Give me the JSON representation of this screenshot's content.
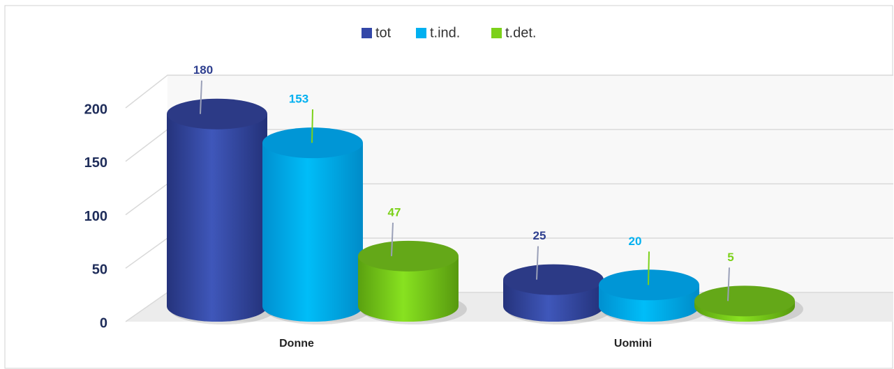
{
  "chart_data": {
    "type": "bar3d",
    "categories": [
      "Donne",
      "Uomini"
    ],
    "series": [
      {
        "name": "tot",
        "color": "#3347a8",
        "values": [
          180,
          25
        ]
      },
      {
        "name": "t.ind.",
        "color": "#00b0f0",
        "values": [
          153,
          20
        ]
      },
      {
        "name": "t.det.",
        "color": "#7cd11a",
        "values": [
          47,
          5
        ]
      }
    ],
    "ylim": [
      0,
      200
    ],
    "yticks": [
      0,
      50,
      100,
      150,
      200
    ],
    "grid": true,
    "legend": "top"
  }
}
